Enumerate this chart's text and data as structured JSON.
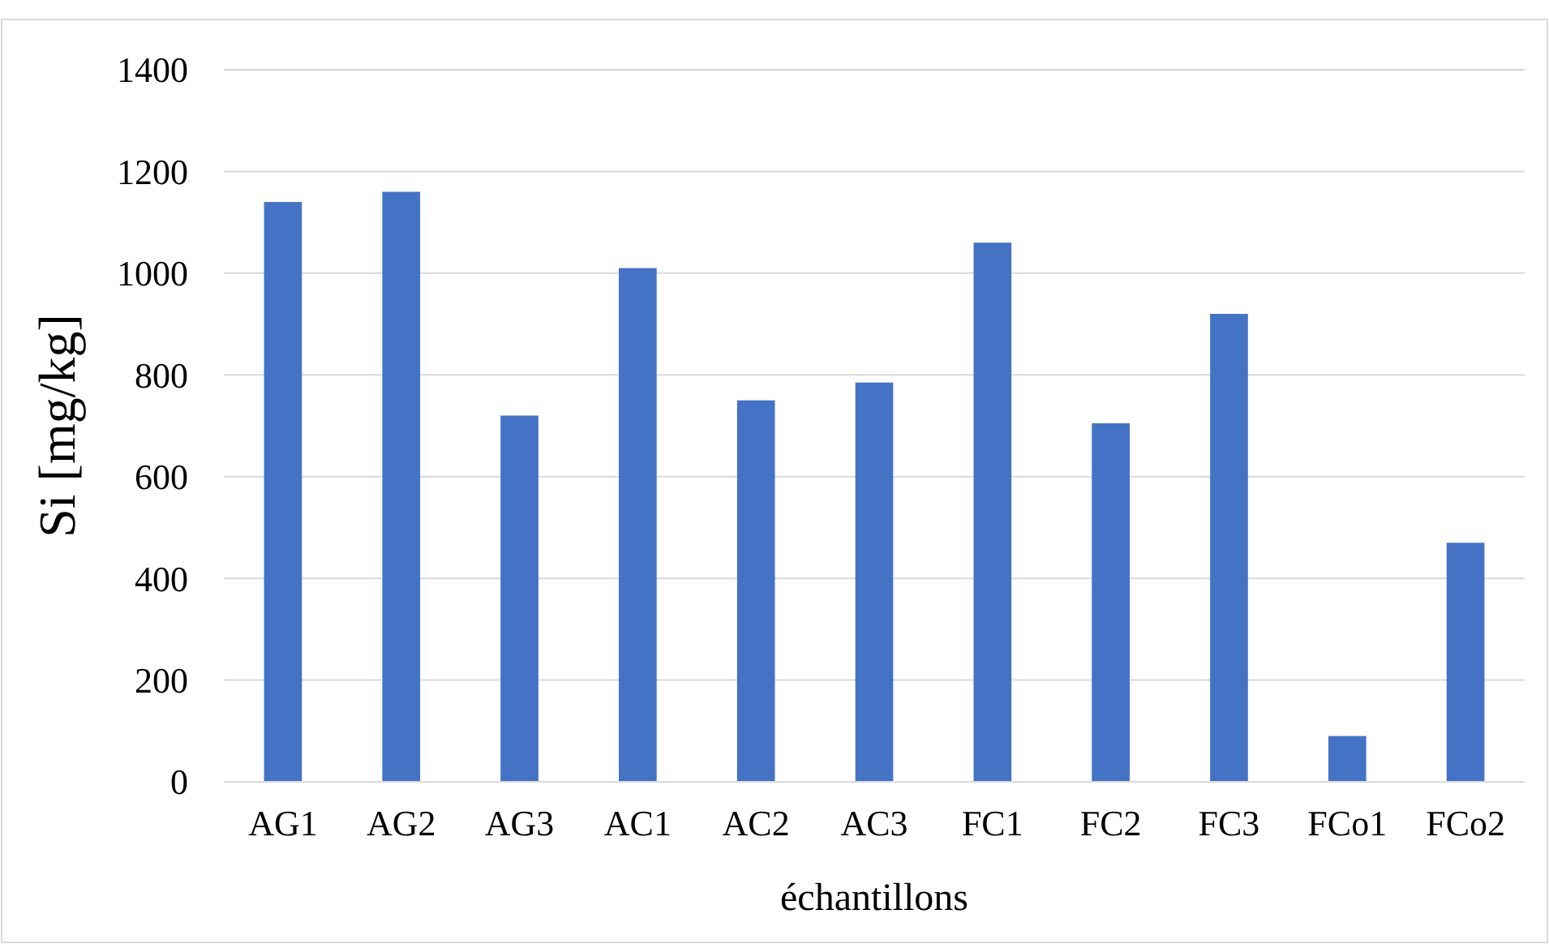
{
  "chart_data": {
    "type": "bar",
    "xlabel": "échantillons",
    "ylabel": "Si [mg/kg]",
    "categories": [
      "AG1",
      "AG2",
      "AG3",
      "AC1",
      "AC2",
      "AC3",
      "FC1",
      "FC2",
      "FC3",
      "FCo1",
      "FCo2"
    ],
    "values": [
      1140,
      1160,
      720,
      1010,
      750,
      785,
      1060,
      705,
      920,
      90,
      470
    ],
    "color": "#4472c4",
    "ylim": [
      0,
      1400
    ],
    "yticks": [
      0,
      200,
      400,
      600,
      800,
      1000,
      1200,
      1400
    ],
    "grid": "y"
  }
}
